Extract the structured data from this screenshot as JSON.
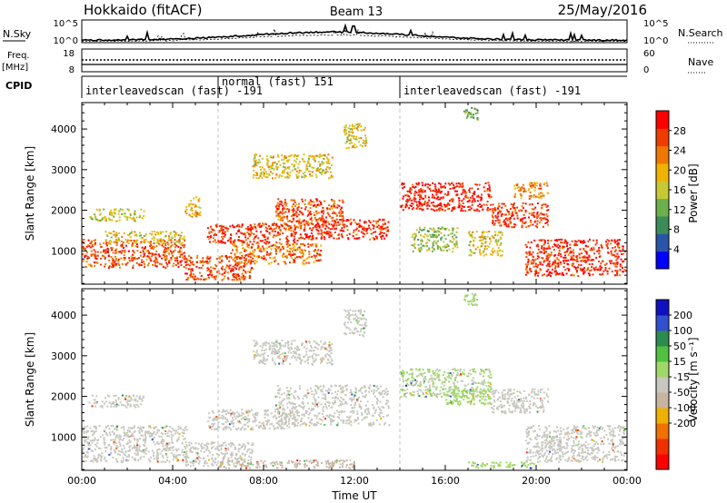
{
  "header": {
    "station": "Hokkaido (fitACF)",
    "beam": "Beam 13",
    "date": "25/May/2016"
  },
  "strip_labels": {
    "nsky": "N.Sky",
    "nsearch": "N.Search",
    "freq_line1": "Freq.",
    "freq_line2": "[MHz]",
    "nave": "Nave",
    "cpid": "CPID",
    "nsky_ticks": [
      "10^5",
      "10^0"
    ],
    "nsearch_ticks": [
      "10^5",
      "10^0"
    ],
    "freq_ticks": [
      "18",
      "8"
    ],
    "nave_ticks": [
      "60",
      "0"
    ]
  },
  "cpid_segments": [
    {
      "label": "interleavedscan (fast) -191",
      "start_hour": 0
    },
    {
      "label": "normal (fast) 151",
      "start_hour": 6
    },
    {
      "label": "interleavedscan (fast) -191",
      "start_hour": 14
    }
  ],
  "colors": {
    "power_scale": [
      "#0000ff",
      "#2a54a8",
      "#3c8c5a",
      "#6cb04c",
      "#c8c832",
      "#f0b400",
      "#f07800",
      "#f03c00",
      "#ff0000"
    ],
    "velocity_scale": [
      "#1010c0",
      "#3050d0",
      "#2c8c50",
      "#50c040",
      "#a0d868",
      "#c8c8c0",
      "#c8b4a0",
      "#f0b000",
      "#f07000",
      "#f03000",
      "#ff0000"
    ]
  },
  "chart_data": [
    {
      "type": "heatmap",
      "name_panel": "power",
      "ylabel": "Slant Range [km]",
      "xlabel": "",
      "x_ticks": [
        "00:00",
        "04:00",
        "08:00",
        "12:00",
        "16:00",
        "20:00",
        "00:00"
      ],
      "xlim_hours": [
        0,
        24
      ],
      "y_ticks": [
        1000,
        2000,
        3000,
        4000
      ],
      "ylim": [
        180,
        4650
      ],
      "colorbar": {
        "label": "Power [dB]",
        "ticks": [
          4,
          8,
          12,
          16,
          20,
          24,
          28
        ],
        "range": [
          0,
          32
        ]
      },
      "echo_regions": [
        {
          "t0": 0.0,
          "t1": 4.6,
          "r0": 600,
          "r1": 1300,
          "p": 26
        },
        {
          "t0": 0.3,
          "t1": 2.7,
          "r0": 1750,
          "r1": 2050,
          "p": 16
        },
        {
          "t0": 1.0,
          "t1": 4.5,
          "r0": 1200,
          "r1": 1500,
          "p": 18
        },
        {
          "t0": 4.5,
          "t1": 7.5,
          "r0": 300,
          "r1": 900,
          "p": 26
        },
        {
          "t0": 4.5,
          "t1": 5.2,
          "r0": 1850,
          "r1": 2350,
          "p": 20
        },
        {
          "t0": 5.5,
          "t1": 9.5,
          "r0": 1200,
          "r1": 1700,
          "p": 27
        },
        {
          "t0": 6.5,
          "t1": 10.5,
          "r0": 700,
          "r1": 1200,
          "p": 24
        },
        {
          "t0": 7.5,
          "t1": 11.0,
          "r0": 2800,
          "r1": 3400,
          "p": 18
        },
        {
          "t0": 8.5,
          "t1": 11.5,
          "r0": 1600,
          "r1": 2300,
          "p": 26
        },
        {
          "t0": 9.5,
          "t1": 13.5,
          "r0": 1300,
          "r1": 1800,
          "p": 28
        },
        {
          "t0": 11.5,
          "t1": 12.5,
          "r0": 3500,
          "r1": 4150,
          "p": 18
        },
        {
          "t0": 14.0,
          "t1": 18.0,
          "r0": 2000,
          "r1": 2700,
          "p": 29
        },
        {
          "t0": 14.5,
          "t1": 16.5,
          "r0": 1000,
          "r1": 1600,
          "p": 14
        },
        {
          "t0": 17.0,
          "t1": 18.5,
          "r0": 900,
          "r1": 1500,
          "p": 18
        },
        {
          "t0": 18.0,
          "t1": 20.5,
          "r0": 1600,
          "r1": 2200,
          "p": 27
        },
        {
          "t0": 19.0,
          "t1": 20.5,
          "r0": 2300,
          "r1": 2700,
          "p": 22
        },
        {
          "t0": 19.5,
          "t1": 23.9,
          "r0": 400,
          "r1": 1300,
          "p": 28
        },
        {
          "t0": 16.8,
          "t1": 17.4,
          "r0": 4250,
          "r1": 4550,
          "p": 12
        }
      ]
    },
    {
      "type": "heatmap",
      "name_panel": "velocity",
      "ylabel": "Slant Range [km]",
      "xlabel": "Time UT",
      "x_ticks": [
        "00:00",
        "04:00",
        "08:00",
        "12:00",
        "16:00",
        "20:00",
        "00:00"
      ],
      "xlim_hours": [
        0,
        24
      ],
      "y_ticks": [
        1000,
        2000,
        3000,
        4000
      ],
      "ylim": [
        180,
        4650
      ],
      "colorbar": {
        "label": "Velocity [m s⁻¹]",
        "ticks": [
          "200",
          "100",
          "50",
          "15",
          "-15",
          "-50",
          "-100",
          "-200"
        ],
        "range": [
          -250,
          250
        ]
      },
      "echo_regions": [
        {
          "t0": 0.0,
          "t1": 4.6,
          "r0": 400,
          "r1": 1300,
          "v": 0
        },
        {
          "t0": 0.3,
          "t1": 2.7,
          "r0": 1750,
          "r1": 2050,
          "v": 0
        },
        {
          "t0": 4.5,
          "t1": 7.5,
          "r0": 300,
          "r1": 900,
          "v": 0
        },
        {
          "t0": 5.5,
          "t1": 9.5,
          "r0": 1200,
          "r1": 1700,
          "v": 0
        },
        {
          "t0": 7.5,
          "t1": 11.0,
          "r0": 2800,
          "r1": 3400,
          "v": 0
        },
        {
          "t0": 8.5,
          "t1": 13.5,
          "r0": 1300,
          "r1": 2300,
          "v": 0
        },
        {
          "t0": 11.5,
          "t1": 12.5,
          "r0": 3500,
          "r1": 4150,
          "v": 0
        },
        {
          "t0": 14.0,
          "t1": 18.0,
          "r0": 2000,
          "r1": 2700,
          "v": 25
        },
        {
          "t0": 16.0,
          "t1": 18.0,
          "r0": 1800,
          "r1": 2200,
          "v": 40
        },
        {
          "t0": 18.0,
          "t1": 20.5,
          "r0": 1600,
          "r1": 2200,
          "v": 0
        },
        {
          "t0": 19.5,
          "t1": 23.9,
          "r0": 400,
          "r1": 1300,
          "v": 0
        },
        {
          "t0": 6.0,
          "t1": 12.0,
          "r0": 250,
          "r1": 450,
          "v": -30
        },
        {
          "t0": 17.0,
          "t1": 20.0,
          "r0": 250,
          "r1": 400,
          "v": 40
        },
        {
          "t0": 16.8,
          "t1": 17.4,
          "r0": 4250,
          "r1": 4550,
          "v": 30
        }
      ]
    }
  ]
}
